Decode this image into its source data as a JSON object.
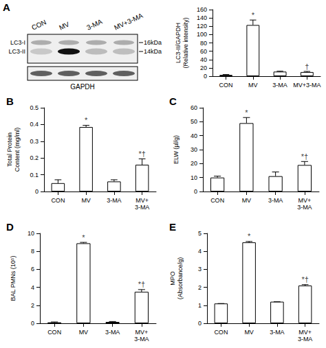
{
  "blot": {
    "title": "A",
    "lanes": [
      "CON",
      "MV",
      "3-MA",
      "MV+3-MA"
    ],
    "bands": [
      {
        "label": "LC3-I",
        "size": "16kDa"
      },
      {
        "label": "LC3-II",
        "size": "14kDa"
      }
    ],
    "loading": "GAPDH"
  },
  "chart_data": [
    {
      "type": "bar",
      "categories": [
        "CON",
        "MV",
        "3-MA",
        "MV+3-MA"
      ],
      "values": [
        3,
        123,
        11,
        10
      ],
      "errors": [
        1,
        12,
        1,
        1.5
      ],
      "annotations": [
        {
          "category": "MV",
          "text": "*"
        },
        {
          "category": "MV+3-MA",
          "text": "†"
        }
      ],
      "ylabel": "LC3-II/GAPDH\n(Relative intensity)",
      "ylim": [
        0,
        160
      ],
      "yticks": [
        0,
        20,
        40,
        60,
        80,
        100,
        120,
        140,
        160
      ],
      "color": "#ffffff",
      "grid": false
    },
    {
      "type": "bar",
      "title": "B",
      "categories": [
        "CON",
        "MV",
        "3-MA",
        "MV+\n3-MA"
      ],
      "values": [
        0.05,
        0.385,
        0.06,
        0.16
      ],
      "errors": [
        0.02,
        0.01,
        0.01,
        0.035
      ],
      "annotations": [
        {
          "category": "MV",
          "text": "*"
        },
        {
          "category": "MV+\n3-MA",
          "text": "*†"
        }
      ],
      "ylabel": "Total Protein\nContent (mg/ml)",
      "ylim": [
        0,
        0.5
      ],
      "yticks": [
        0,
        0.1,
        0.2,
        0.3,
        0.4,
        0.5
      ],
      "color": "#ffffff",
      "grid": false
    },
    {
      "type": "bar",
      "title": "C",
      "categories": [
        "CON",
        "MV",
        "3-MA",
        "MV+\n3-MA"
      ],
      "values": [
        10,
        49,
        11,
        19
      ],
      "errors": [
        1,
        4,
        3,
        2.5
      ],
      "annotations": [
        {
          "category": "MV",
          "text": "*"
        },
        {
          "category": "MV+\n3-MA",
          "text": "*†"
        }
      ],
      "ylabel": "ELW (µl/g)",
      "ylim": [
        0,
        60
      ],
      "yticks": [
        0,
        10,
        20,
        30,
        40,
        50,
        60
      ],
      "color": "#ffffff",
      "grid": false
    },
    {
      "type": "bar",
      "title": "D",
      "categories": [
        "CON",
        "MV",
        "3-MA",
        "MV+\n3-MA"
      ],
      "values": [
        0.1,
        8.9,
        0.15,
        3.5
      ],
      "errors": [
        0.05,
        0.1,
        0.05,
        0.25
      ],
      "annotations": [
        {
          "category": "MV",
          "text": "*"
        },
        {
          "category": "MV+\n3-MA",
          "text": "*†"
        }
      ],
      "ylabel": "BAL PMNs (10⁵)",
      "ylim": [
        0,
        10
      ],
      "yticks": [
        0,
        2,
        4,
        6,
        8,
        10
      ],
      "color": "#ffffff",
      "grid": false
    },
    {
      "type": "bar",
      "title": "E",
      "categories": [
        "CON",
        "MV",
        "3-MA",
        "MV+\n3-MA"
      ],
      "values": [
        1.1,
        4.5,
        1.2,
        2.1
      ],
      "errors": [
        0,
        0.05,
        0,
        0.05
      ],
      "annotations": [
        {
          "category": "MV",
          "text": "*"
        },
        {
          "category": "MV+\n3-MA",
          "text": "*†"
        }
      ],
      "ylabel": "MPO\n(Absorbance/g)",
      "ylim": [
        0,
        5
      ],
      "yticks": [
        0,
        1,
        2,
        3,
        4,
        5
      ],
      "color": "#ffffff",
      "grid": false
    }
  ]
}
